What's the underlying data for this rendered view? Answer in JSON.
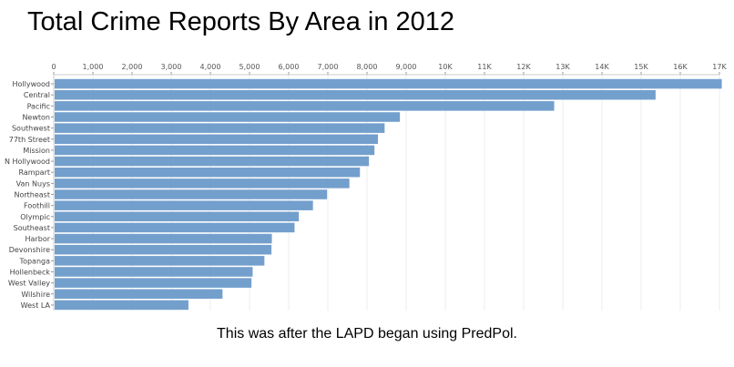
{
  "chart_data": {
    "type": "bar",
    "orientation": "horizontal",
    "title": "Total Crime Reports By Area in 2012",
    "caption": "This was after the LAPD began using PredPol.",
    "categories": [
      "Hollywood",
      "Central",
      "Pacific",
      "Newton",
      "Southwest",
      "77th Street",
      "Mission",
      "N Hollywood",
      "Rampart",
      "Van Nuys",
      "Northeast",
      "Foothill",
      "Olympic",
      "Southeast",
      "Harbor",
      "Devonshire",
      "Topanga",
      "Hollenbeck",
      "West Valley",
      "Wilshire",
      "West LA"
    ],
    "values": [
      17060,
      15370,
      12780,
      8840,
      8450,
      8280,
      8190,
      8050,
      7820,
      7550,
      6980,
      6620,
      6260,
      6150,
      5570,
      5560,
      5380,
      5080,
      5050,
      4310,
      3440
    ],
    "xlim": [
      0,
      17000
    ],
    "xticks": [
      0,
      1000,
      2000,
      3000,
      4000,
      5000,
      6000,
      7000,
      8000,
      9000,
      10000,
      11000,
      12000,
      13000,
      14000,
      15000,
      16000,
      17000
    ],
    "xtick_labels": [
      "0",
      "1,000",
      "2,000",
      "3,000",
      "4,000",
      "5,000",
      "6,000",
      "7,000",
      "8,000",
      "9,000",
      "10K",
      "11K",
      "12K",
      "13K",
      "14K",
      "15K",
      "16K",
      "17K"
    ],
    "axis_position": "top",
    "grid": true,
    "bar_color": "#739fcd",
    "xlabel": "",
    "ylabel": ""
  }
}
